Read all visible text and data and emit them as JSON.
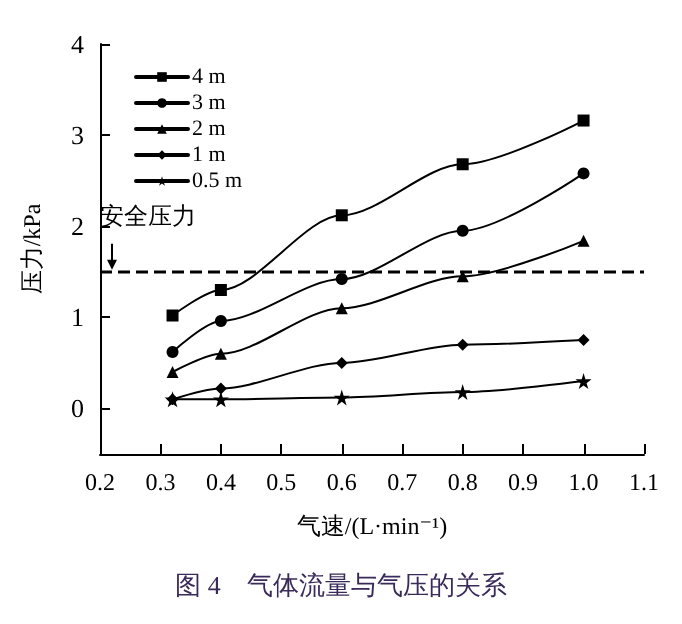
{
  "chart_data": {
    "type": "line",
    "xlabel": "气速/(L·min⁻¹)",
    "ylabel": "压力/kPa",
    "x": [
      0.32,
      0.4,
      0.6,
      0.8,
      1.0
    ],
    "series": [
      {
        "name": "4 m",
        "color": "#000000",
        "marker": "square",
        "values": [
          1.02,
          1.3,
          2.12,
          2.68,
          3.16
        ]
      },
      {
        "name": "3 m",
        "color": "#000000",
        "marker": "circle",
        "values": [
          0.62,
          0.96,
          1.42,
          1.95,
          2.58
        ]
      },
      {
        "name": "2 m",
        "color": "#000000",
        "marker": "triangle",
        "values": [
          0.4,
          0.6,
          1.1,
          1.45,
          1.84
        ]
      },
      {
        "name": "1 m",
        "color": "#000000",
        "marker": "diamond",
        "values": [
          0.1,
          0.22,
          0.5,
          0.7,
          0.75
        ]
      },
      {
        "name": "0.5 m",
        "color": "#000000",
        "marker": "star",
        "values": [
          0.1,
          0.1,
          0.12,
          0.18,
          0.3
        ]
      }
    ],
    "xlim": [
      0.2,
      1.1
    ],
    "xticks": [
      0.2,
      0.3,
      0.4,
      0.5,
      0.6,
      0.7,
      0.8,
      0.9,
      {
        "value": 1.0,
        "label": "1.0"
      },
      1.1
    ],
    "ylim": [
      -0.5,
      4
    ],
    "yticks": [
      0,
      1,
      2,
      3,
      4
    ],
    "ref_lines": [
      {
        "axis": "y",
        "value": 1.5,
        "label": "安全压力",
        "color": "#000000",
        "line_style": "dashed"
      }
    ],
    "annotations": [
      "图 4　气体流量与气压的关系"
    ],
    "legend": "top left",
    "grid": false,
    "line_style": "solid"
  }
}
